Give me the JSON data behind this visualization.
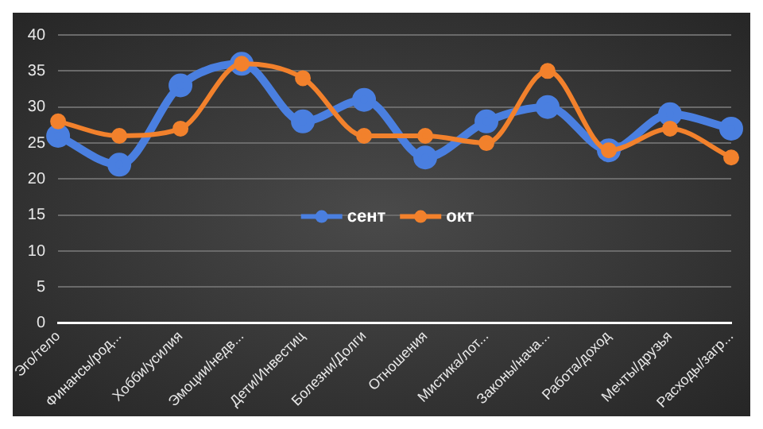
{
  "chart_data": {
    "type": "line",
    "categories": [
      "Эго/тело",
      "Финансы/род...",
      "Хобби/усилия",
      "Эмоции/недв...",
      "Дети/Инвестиц",
      "Болезни/Долги",
      "Отношения",
      "Мистика/лот...",
      "Законы/нача...",
      "Работа/доход",
      "Мечты/друзья",
      "Расходы/загр..."
    ],
    "series": [
      {
        "name": "сент",
        "color": "#4a7fe0",
        "values": [
          26,
          22,
          33,
          36,
          28,
          31,
          23,
          28,
          30,
          24,
          29,
          27
        ]
      },
      {
        "name": "окт",
        "color": "#f2812c",
        "values": [
          28,
          26,
          27,
          36,
          34,
          26,
          26,
          25,
          35,
          24,
          27,
          23
        ]
      }
    ],
    "ylim": [
      0,
      40
    ],
    "yticks": [
      0,
      5,
      10,
      15,
      20,
      25,
      30,
      35,
      40
    ],
    "grid": "y",
    "legend": "center",
    "marker": "circle",
    "line_style": "solid"
  }
}
